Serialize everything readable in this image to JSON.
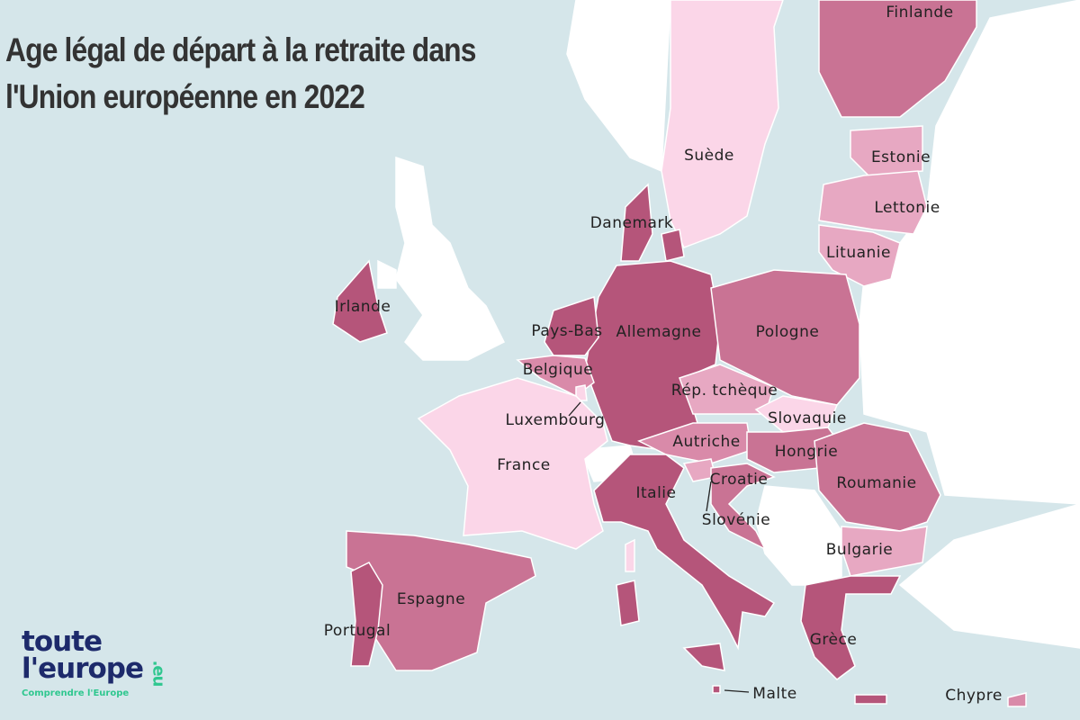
{
  "title": "Age légal de départ à la retraite dans l'Union européenne en 2022",
  "countries": [
    "Finlande",
    "Suède",
    "Estonie",
    "Lettonie",
    "Lituanie",
    "Danemark",
    "Irlande",
    "Pays-Bas",
    "Allemagne",
    "Pologne",
    "Belgique",
    "Luxembourg",
    "Rép. tchèque",
    "Slovaquie",
    "France",
    "Autriche",
    "Hongrie",
    "Croatie",
    "Italie",
    "Slovénie",
    "Roumanie",
    "Bulgarie",
    "Espagne",
    "Portugal",
    "Grèce",
    "Malte",
    "Chypre"
  ],
  "logo": {
    "line1": "toute",
    "line2": "l'europe",
    "tld": ".eu",
    "tagline": "Comprendre l'Europe"
  }
}
